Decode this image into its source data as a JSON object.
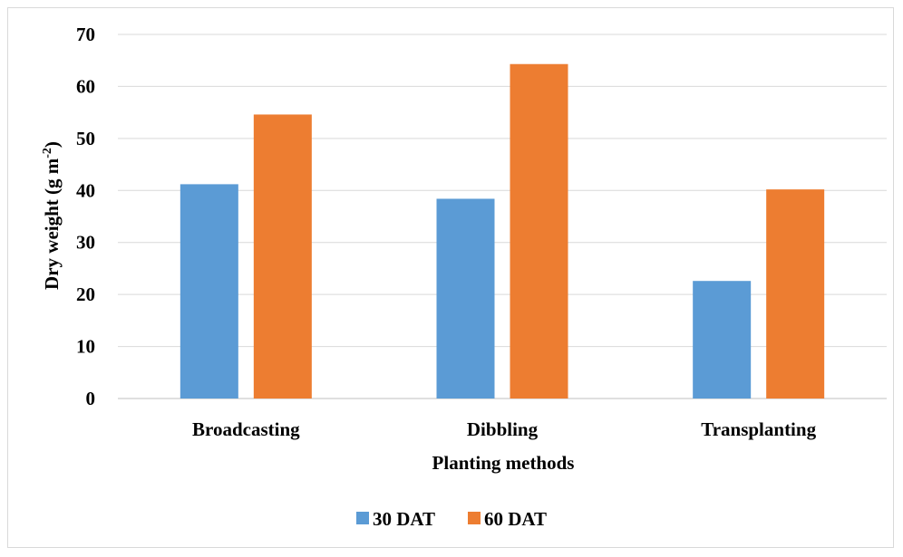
{
  "chart_data": {
    "type": "bar",
    "categories": [
      "Broadcasting",
      "Dibbling",
      "Transplanting"
    ],
    "series": [
      {
        "name": "30 DAT",
        "values": [
          41.2,
          38.4,
          22.6
        ],
        "color": "#5b9bd5"
      },
      {
        "name": "60 DAT",
        "values": [
          54.6,
          64.3,
          40.2
        ],
        "color": "#ed7d31"
      }
    ],
    "xlabel": "Planting methods",
    "ylabel": "Dry weight (g m",
    "ylabel_superscript": "-2",
    "ylabel_suffix": ")",
    "ylim": [
      0,
      70
    ],
    "yticks": [
      "0",
      "10",
      "20",
      "30",
      "40",
      "50",
      "60",
      "70"
    ],
    "grid": true,
    "legend_position": "bottom"
  }
}
